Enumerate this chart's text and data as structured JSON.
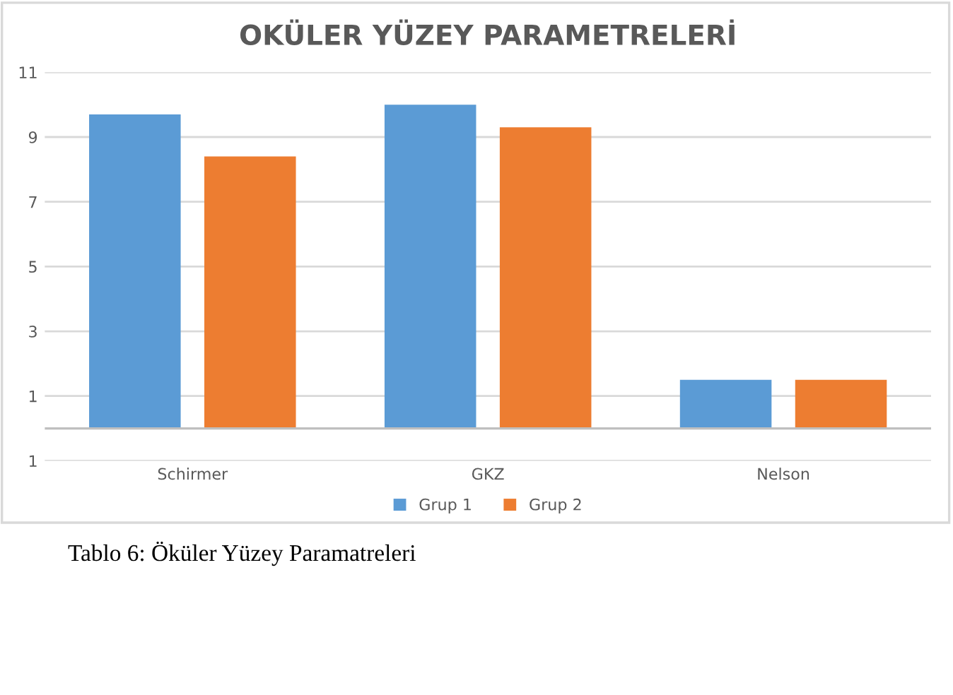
{
  "chart_data": {
    "type": "bar",
    "title": "OKÜLER YÜZEY PARAMETRELERİ",
    "categories": [
      "Schirmer",
      "GKZ",
      "Nelson"
    ],
    "series": [
      {
        "name": "Grup 1",
        "color": "#5b9bd5",
        "values": [
          9.7,
          10.0,
          1.5
        ]
      },
      {
        "name": "Grup 2",
        "color": "#ed7d31",
        "values": [
          8.4,
          9.3,
          1.5
        ]
      }
    ],
    "ylim": [
      -1,
      11
    ],
    "yticks": [
      {
        "value": -1,
        "label": "1"
      },
      1,
      3,
      5,
      7,
      9,
      11
    ],
    "grid": "y",
    "legend": "bottom",
    "annotations": [
      "Tablo 6: Öküler Yüzey Paramatreleri"
    ]
  }
}
